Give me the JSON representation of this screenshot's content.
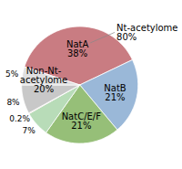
{
  "chart_data": {
    "type": "pie",
    "categories": [
      "NatA\n38%",
      "NatB\n21%",
      "NatC/E/F\n21%",
      "7%",
      "0.2%",
      "8%",
      "5%"
    ],
    "values": [
      38,
      21,
      21,
      7,
      0.2,
      8,
      5
    ],
    "colors": [
      "#c97c82",
      "#9ab8d8",
      "#96bf78",
      "#b8dcb8",
      "#e8b0b0",
      "#c8c8c8",
      "#e0e0e0"
    ],
    "annotations": [
      "Non-Nt-\nacetylome\n20%",
      "Nt-acetylome\n80%"
    ]
  }
}
